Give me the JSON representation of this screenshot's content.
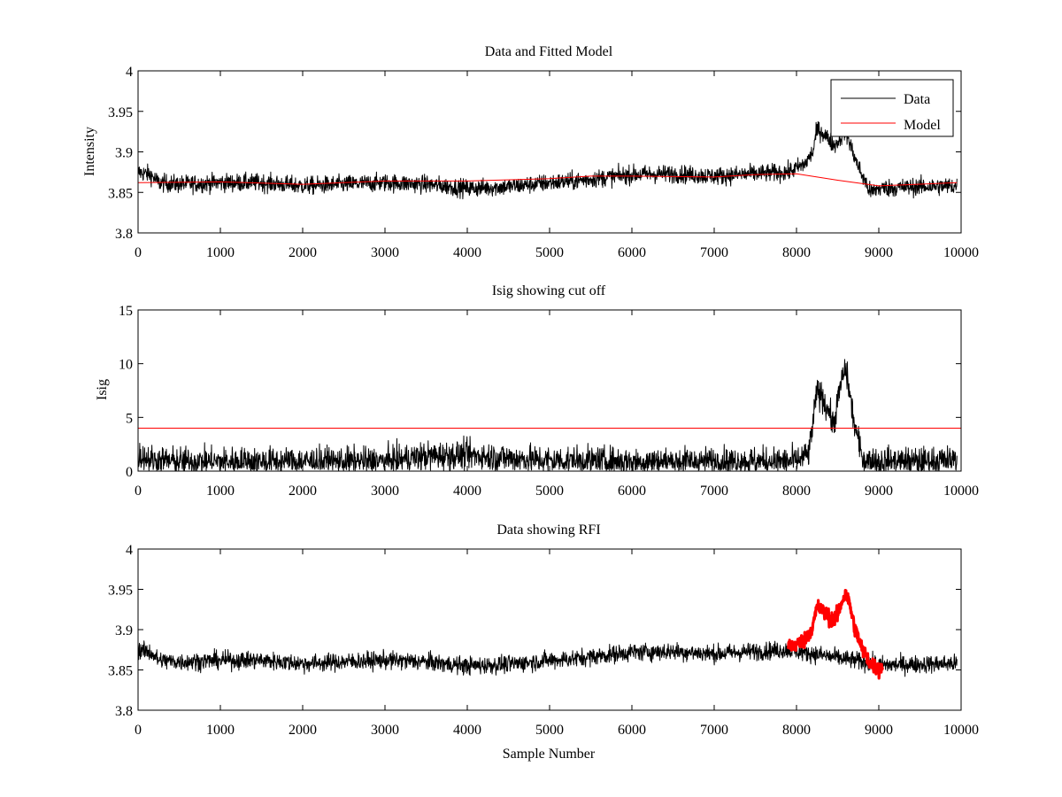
{
  "chart_data": [
    {
      "type": "line",
      "title": "Data and Fitted Model",
      "xlabel": "",
      "ylabel": "Intensity",
      "xlim": [
        0,
        10000
      ],
      "ylim": [
        3.8,
        4.0
      ],
      "xticks": [
        0,
        1000,
        2000,
        3000,
        4000,
        5000,
        6000,
        7000,
        8000,
        9000,
        10000
      ],
      "xtick_labels": [
        "0",
        "1000",
        "2000",
        "3000",
        "4000",
        "5000",
        "6000",
        "7000",
        "8000",
        "9000",
        "10000"
      ],
      "yticks": [
        3.8,
        3.85,
        3.9,
        3.95,
        4.0
      ],
      "ytick_labels": [
        "3.8",
        "3.85",
        "3.9",
        "3.95",
        "4"
      ],
      "grid": false,
      "legend": "top-right",
      "series": [
        {
          "name": "Data",
          "color": "#000000",
          "noise": 0.009,
          "x": [
            0,
            150,
            250,
            500,
            1000,
            1500,
            2000,
            2500,
            3000,
            3500,
            4000,
            4500,
            5000,
            5300,
            6000,
            6500,
            7000,
            7500,
            7900,
            8100,
            8200,
            8250,
            8300,
            8400,
            8450,
            8500,
            8550,
            8600,
            8650,
            8700,
            8800,
            8900,
            9000,
            9500,
            9950
          ],
          "y": [
            3.875,
            3.872,
            3.862,
            3.86,
            3.862,
            3.862,
            3.858,
            3.86,
            3.862,
            3.86,
            3.855,
            3.857,
            3.862,
            3.864,
            3.872,
            3.873,
            3.87,
            3.873,
            3.875,
            3.885,
            3.9,
            3.928,
            3.925,
            3.915,
            3.908,
            3.912,
            3.92,
            3.925,
            3.91,
            3.895,
            3.87,
            3.85,
            3.855,
            3.857,
            3.858
          ]
        },
        {
          "name": "Model",
          "color": "#ff0000",
          "noise": 0,
          "x": [
            0,
            1000,
            2000,
            3000,
            4000,
            5000,
            5500,
            6000,
            7000,
            7500,
            8000,
            8500,
            9000,
            9950
          ],
          "y": [
            3.862,
            3.863,
            3.86,
            3.864,
            3.864,
            3.867,
            3.87,
            3.87,
            3.869,
            3.872,
            3.873,
            3.865,
            3.858,
            3.862
          ]
        }
      ]
    },
    {
      "type": "line",
      "title": "Isig showing cut off",
      "xlabel": "",
      "ylabel": "Isig",
      "xlim": [
        0,
        10000
      ],
      "ylim": [
        0,
        15
      ],
      "xticks": [
        0,
        1000,
        2000,
        3000,
        4000,
        5000,
        6000,
        7000,
        8000,
        9000,
        10000
      ],
      "xtick_labels": [
        "0",
        "1000",
        "2000",
        "3000",
        "4000",
        "5000",
        "6000",
        "7000",
        "8000",
        "9000",
        "10000"
      ],
      "yticks": [
        0,
        5,
        10,
        15
      ],
      "ytick_labels": [
        "0",
        "5",
        "10",
        "15"
      ],
      "grid": false,
      "series": [
        {
          "name": "Isig",
          "color": "#000000",
          "noise": 1.1,
          "floor": 0,
          "x": [
            0,
            200,
            500,
            1000,
            2000,
            3000,
            3500,
            4000,
            4500,
            5000,
            6000,
            7000,
            8000,
            8150,
            8200,
            8250,
            8300,
            8400,
            8450,
            8500,
            8550,
            8600,
            8650,
            8700,
            8800,
            8900,
            9000,
            9500,
            9950
          ],
          "y": [
            1.5,
            1.0,
            0.9,
            0.9,
            0.9,
            0.9,
            1.4,
            1.5,
            1.2,
            1.0,
            0.9,
            0.9,
            0.9,
            1.6,
            4.5,
            7.5,
            7.0,
            5.5,
            4.2,
            6.5,
            8.5,
            9.5,
            7.0,
            4.5,
            1.2,
            0.9,
            0.9,
            0.9,
            1.0
          ]
        },
        {
          "name": "Cut off",
          "color": "#ff0000",
          "noise": 0,
          "x": [
            0,
            10000
          ],
          "y": [
            4,
            4
          ]
        }
      ]
    },
    {
      "type": "line",
      "title": "Data showing RFI",
      "xlabel": "Sample Number",
      "ylabel": "",
      "xlim": [
        0,
        10000
      ],
      "ylim": [
        3.8,
        4.0
      ],
      "xticks": [
        0,
        1000,
        2000,
        3000,
        4000,
        5000,
        6000,
        7000,
        8000,
        9000,
        10000
      ],
      "xtick_labels": [
        "0",
        "1000",
        "2000",
        "3000",
        "4000",
        "5000",
        "6000",
        "7000",
        "8000",
        "9000",
        "10000"
      ],
      "yticks": [
        3.8,
        3.85,
        3.9,
        3.95,
        4.0
      ],
      "ytick_labels": [
        "3.8",
        "3.85",
        "3.9",
        "3.95",
        "4"
      ],
      "grid": false,
      "series": [
        {
          "name": "Data",
          "color": "#000000",
          "noise": 0.009,
          "x": [
            0,
            150,
            250,
            500,
            1000,
            1500,
            2000,
            2500,
            3000,
            3500,
            4000,
            4500,
            5000,
            5300,
            6000,
            6500,
            7000,
            7500,
            7900,
            9050,
            9500,
            9950
          ],
          "y": [
            3.875,
            3.872,
            3.862,
            3.86,
            3.862,
            3.862,
            3.858,
            3.86,
            3.862,
            3.86,
            3.855,
            3.857,
            3.862,
            3.864,
            3.872,
            3.873,
            3.87,
            3.873,
            3.875,
            3.856,
            3.857,
            3.858
          ]
        },
        {
          "name": "RFI",
          "color": "#ff0000",
          "noise": 0.008,
          "marker": "dot",
          "x": [
            7900,
            8000,
            8100,
            8200,
            8250,
            8300,
            8400,
            8450,
            8500,
            8550,
            8600,
            8650,
            8700,
            8800,
            8900,
            9000,
            9050
          ],
          "y": [
            3.88,
            3.882,
            3.887,
            3.905,
            3.928,
            3.925,
            3.915,
            3.912,
            3.918,
            3.935,
            3.945,
            3.93,
            3.905,
            3.875,
            3.858,
            3.85,
            3.855
          ]
        }
      ]
    }
  ]
}
